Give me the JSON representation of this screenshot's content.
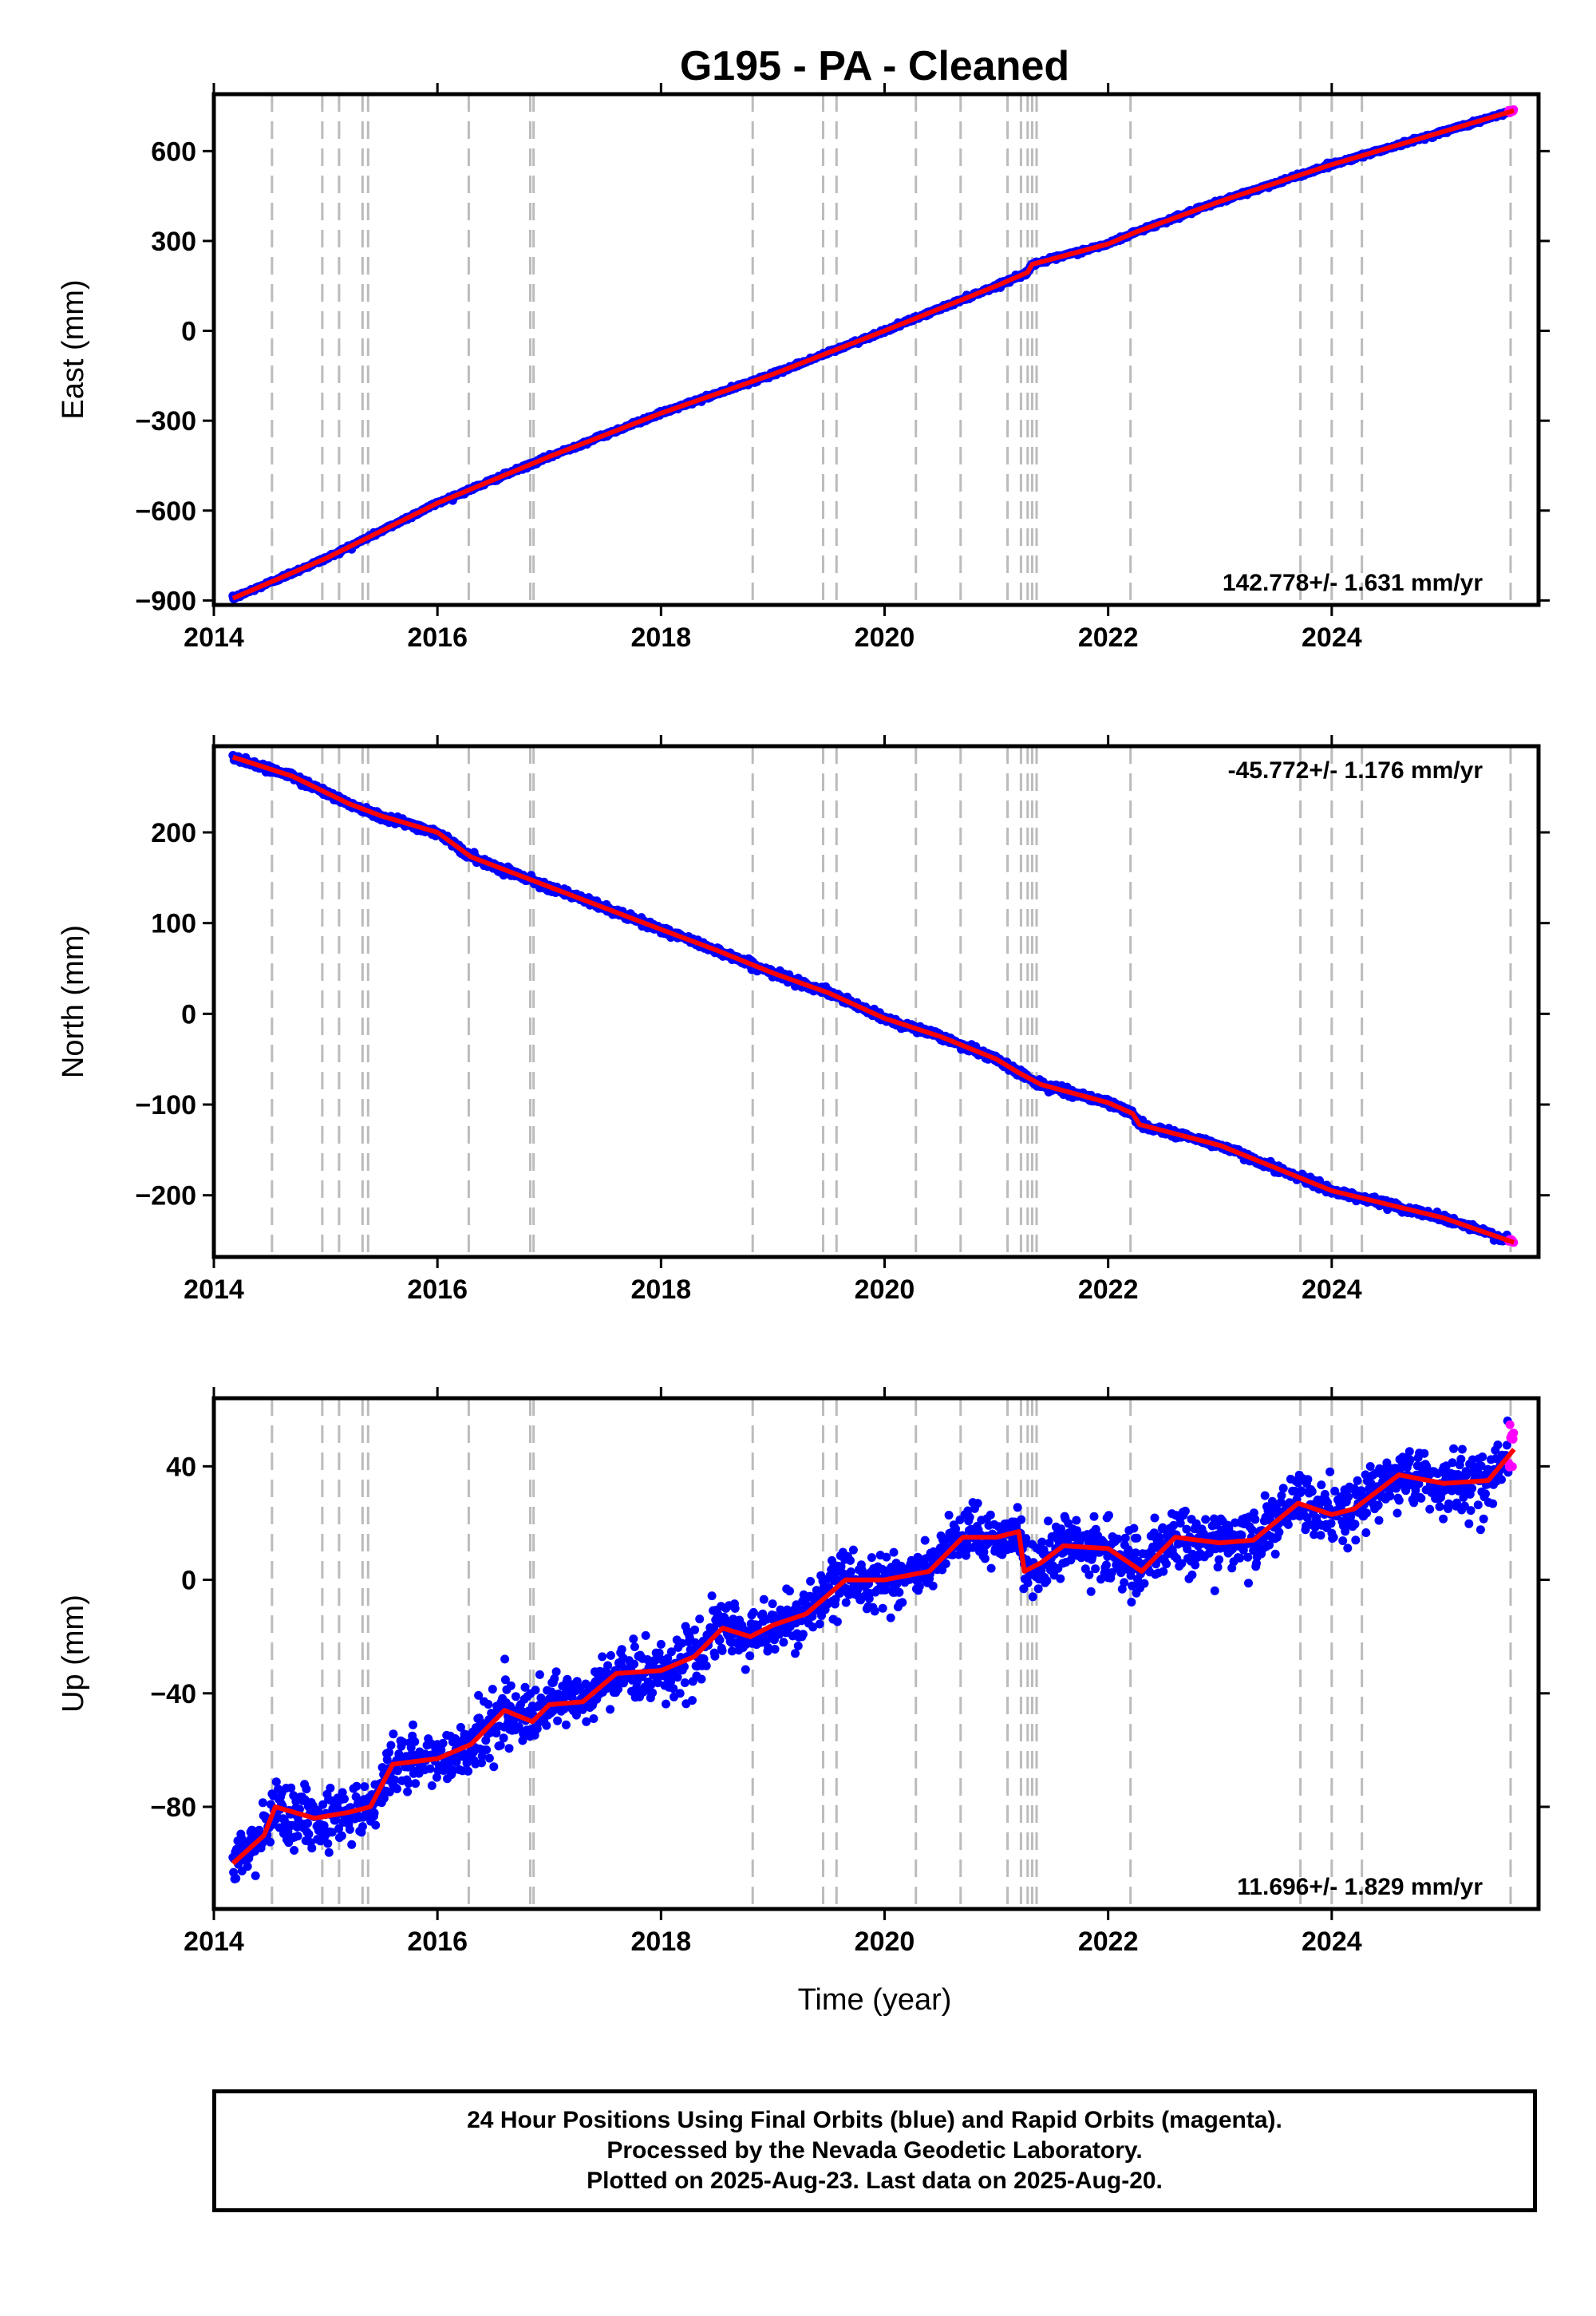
{
  "title": "G195  - PA - Cleaned",
  "xlabel": "Time (year)",
  "footer": {
    "line1": "24 Hour Positions Using Final Orbits (blue) and Rapid Orbits (magenta).",
    "line2": "Processed by the Nevada Geodetic Laboratory.",
    "line3": "Plotted on 2025-Aug-23. Last data on 2025-Aug-20."
  },
  "colors": {
    "final_orbits": "#0000ff",
    "rapid_orbits": "#ff00ff",
    "model_fit": "#ff0000",
    "event_lines": "#bbbbbb"
  },
  "chart_data": [
    {
      "type": "scatter",
      "ylabel": "East (mm)",
      "rate_label": "142.778+/- 1.631 mm/yr",
      "rate_position": "bottom-right",
      "xlim": [
        2014.0,
        2025.85
      ],
      "ylim": [
        -915,
        790
      ],
      "xticks": [
        2014,
        2016,
        2018,
        2020,
        2022,
        2024
      ],
      "xtick_labels": [
        "2014",
        "2016",
        "2018",
        "2020",
        "2022",
        "2024"
      ],
      "yticks": [
        600,
        300,
        0,
        -300,
        -600,
        -900
      ],
      "ytick_labels": [
        "600",
        "300",
        "0",
        "−300",
        "−600",
        "−900"
      ],
      "x_start": 2014.17,
      "x_end": 2025.63,
      "x_rapid_start": 2025.58,
      "fit_knots": [
        [
          2014.17,
          -893
        ],
        [
          2015.0,
          -760
        ],
        [
          2016.0,
          -575
        ],
        [
          2017.0,
          -420
        ],
        [
          2018.0,
          -275
        ],
        [
          2019.0,
          -145
        ],
        [
          2020.0,
          0
        ],
        [
          2021.0,
          150
        ],
        [
          2021.28,
          195
        ],
        [
          2021.32,
          222
        ],
        [
          2022.0,
          290
        ],
        [
          2022.25,
          330
        ],
        [
          2023.0,
          432
        ],
        [
          2024.0,
          555
        ],
        [
          2025.0,
          665
        ],
        [
          2025.63,
          735
        ]
      ],
      "noise_sd": 3,
      "grid": false
    },
    {
      "type": "scatter",
      "ylabel": "North (mm)",
      "rate_label": "-45.772+/- 1.176 mm/yr",
      "rate_position": "top-right",
      "xlim": [
        2014.0,
        2025.85
      ],
      "ylim": [
        -268,
        295
      ],
      "xticks": [
        2014,
        2016,
        2018,
        2020,
        2022,
        2024
      ],
      "xtick_labels": [
        "2014",
        "2016",
        "2018",
        "2020",
        "2022",
        "2024"
      ],
      "yticks": [
        200,
        100,
        0,
        -100,
        -200
      ],
      "ytick_labels": [
        "200",
        "100",
        "0",
        "−100",
        "−200"
      ],
      "x_start": 2014.17,
      "x_end": 2025.63,
      "x_rapid_start": 2025.58,
      "fit_knots": [
        [
          2014.17,
          283
        ],
        [
          2014.7,
          262
        ],
        [
          2015.2,
          232
        ],
        [
          2015.5,
          218
        ],
        [
          2016.0,
          200
        ],
        [
          2016.3,
          173
        ],
        [
          2017.0,
          140
        ],
        [
          2018.0,
          93
        ],
        [
          2018.5,
          70
        ],
        [
          2019.0,
          45
        ],
        [
          2019.5,
          23
        ],
        [
          2020.0,
          -5
        ],
        [
          2020.5,
          -25
        ],
        [
          2021.0,
          -50
        ],
        [
          2021.2,
          -65
        ],
        [
          2021.4,
          -78
        ],
        [
          2022.0,
          -98
        ],
        [
          2022.22,
          -110
        ],
        [
          2022.28,
          -122
        ],
        [
          2023.0,
          -145
        ],
        [
          2024.0,
          -195
        ],
        [
          2025.0,
          -225
        ],
        [
          2025.63,
          -252
        ]
      ],
      "noise_sd": 2,
      "grid": false
    },
    {
      "type": "scatter",
      "ylabel": "Up (mm)",
      "rate_label": "11.696+/- 1.829 mm/yr",
      "rate_position": "bottom-right",
      "xlim": [
        2014.0,
        2025.85
      ],
      "ylim": [
        -116,
        64
      ],
      "xticks": [
        2014,
        2016,
        2018,
        2020,
        2022,
        2024
      ],
      "xtick_labels": [
        "2014",
        "2016",
        "2018",
        "2020",
        "2022",
        "2024"
      ],
      "yticks": [
        40,
        0,
        -40,
        -80
      ],
      "ytick_labels": [
        "40",
        "0",
        "−40",
        "−80"
      ],
      "x_start": 2014.17,
      "x_end": 2025.63,
      "x_rapid_start": 2025.58,
      "fit_knots": [
        [
          2014.17,
          -100
        ],
        [
          2014.45,
          -90
        ],
        [
          2014.55,
          -80
        ],
        [
          2014.9,
          -84
        ],
        [
          2015.2,
          -82
        ],
        [
          2015.4,
          -80
        ],
        [
          2015.6,
          -65
        ],
        [
          2016.0,
          -63
        ],
        [
          2016.3,
          -58
        ],
        [
          2016.6,
          -46
        ],
        [
          2016.85,
          -50
        ],
        [
          2017.0,
          -44
        ],
        [
          2017.3,
          -43
        ],
        [
          2017.6,
          -33
        ],
        [
          2018.0,
          -32
        ],
        [
          2018.3,
          -27
        ],
        [
          2018.55,
          -17
        ],
        [
          2018.8,
          -20
        ],
        [
          2019.0,
          -16
        ],
        [
          2019.3,
          -12
        ],
        [
          2019.65,
          0
        ],
        [
          2020.0,
          0
        ],
        [
          2020.4,
          3
        ],
        [
          2020.7,
          15
        ],
        [
          2021.0,
          15
        ],
        [
          2021.2,
          17
        ],
        [
          2021.25,
          3
        ],
        [
          2021.4,
          6
        ],
        [
          2021.6,
          12
        ],
        [
          2022.0,
          11
        ],
        [
          2022.3,
          3
        ],
        [
          2022.6,
          15
        ],
        [
          2023.0,
          13
        ],
        [
          2023.3,
          14
        ],
        [
          2023.7,
          27
        ],
        [
          2024.0,
          23
        ],
        [
          2024.2,
          25
        ],
        [
          2024.6,
          37
        ],
        [
          2025.0,
          34
        ],
        [
          2025.4,
          35
        ],
        [
          2025.63,
          46
        ]
      ],
      "noise_sd": 5,
      "grid": false
    }
  ],
  "event_lines": [
    2014.52,
    2014.97,
    2015.12,
    2015.33,
    2015.38,
    2016.28,
    2016.83,
    2016.86,
    2018.82,
    2019.45,
    2019.57,
    2020.28,
    2020.68,
    2021.1,
    2021.22,
    2021.28,
    2021.32,
    2021.36,
    2022.2,
    2023.72,
    2024.0,
    2024.27,
    2025.6
  ]
}
